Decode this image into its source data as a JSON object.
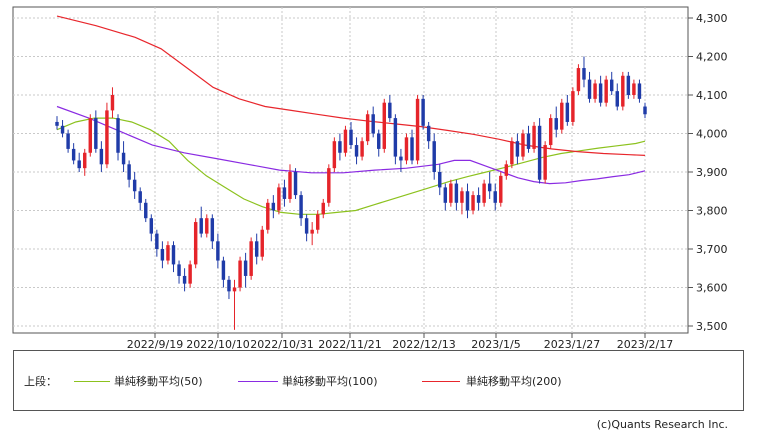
{
  "chart_data": {
    "type": "candlestick",
    "y_ticks": [
      "4,300",
      "4,200",
      "4,100",
      "4,000",
      "3,900",
      "3,800",
      "3,700",
      "3,600",
      "3,500"
    ],
    "ylim": [
      3480,
      4320
    ],
    "x_tick_labels": [
      "2022/9/19",
      "2022/10/10",
      "2022/10/31",
      "2022/11/21",
      "2022/12/13",
      "2023/1/5",
      "2023/1/27",
      "2023/2/17"
    ],
    "up_color": "#e5242a",
    "down_color": "#1f3ba8",
    "candles": [
      [
        4030,
        4045,
        4010,
        4020
      ],
      [
        4020,
        4035,
        3990,
        4000
      ],
      [
        4000,
        4010,
        3950,
        3960
      ],
      [
        3960,
        3975,
        3920,
        3930
      ],
      [
        3930,
        3950,
        3900,
        3910
      ],
      [
        3910,
        3960,
        3890,
        3950
      ],
      [
        3950,
        4050,
        3940,
        4040
      ],
      [
        4040,
        4060,
        3950,
        3960
      ],
      [
        3960,
        3980,
        3900,
        3920
      ],
      [
        3920,
        4080,
        3910,
        4060
      ],
      [
        4060,
        4120,
        4040,
        4100
      ],
      [
        4040,
        4050,
        3930,
        3950
      ],
      [
        3950,
        3980,
        3900,
        3920
      ],
      [
        3920,
        3930,
        3860,
        3880
      ],
      [
        3880,
        3900,
        3830,
        3850
      ],
      [
        3850,
        3860,
        3800,
        3820
      ],
      [
        3820,
        3830,
        3770,
        3780
      ],
      [
        3780,
        3790,
        3720,
        3740
      ],
      [
        3740,
        3750,
        3680,
        3700
      ],
      [
        3700,
        3720,
        3650,
        3670
      ],
      [
        3670,
        3720,
        3660,
        3710
      ],
      [
        3710,
        3720,
        3640,
        3660
      ],
      [
        3660,
        3670,
        3610,
        3630
      ],
      [
        3630,
        3650,
        3590,
        3610
      ],
      [
        3610,
        3670,
        3600,
        3660
      ],
      [
        3660,
        3780,
        3650,
        3770
      ],
      [
        3780,
        3810,
        3730,
        3740
      ],
      [
        3740,
        3790,
        3730,
        3780
      ],
      [
        3780,
        3790,
        3700,
        3720
      ],
      [
        3720,
        3740,
        3650,
        3670
      ],
      [
        3670,
        3680,
        3600,
        3620
      ],
      [
        3620,
        3630,
        3570,
        3590
      ],
      [
        3590,
        3620,
        3490,
        3600
      ],
      [
        3600,
        3680,
        3590,
        3670
      ],
      [
        3670,
        3690,
        3600,
        3630
      ],
      [
        3630,
        3730,
        3620,
        3720
      ],
      [
        3720,
        3740,
        3660,
        3680
      ],
      [
        3680,
        3760,
        3670,
        3750
      ],
      [
        3750,
        3830,
        3740,
        3820
      ],
      [
        3820,
        3840,
        3780,
        3800
      ],
      [
        3800,
        3870,
        3790,
        3860
      ],
      [
        3860,
        3880,
        3810,
        3830
      ],
      [
        3830,
        3920,
        3820,
        3900
      ],
      [
        3900,
        3910,
        3830,
        3840
      ],
      [
        3840,
        3850,
        3760,
        3780
      ],
      [
        3780,
        3790,
        3720,
        3740
      ],
      [
        3740,
        3770,
        3710,
        3750
      ],
      [
        3750,
        3800,
        3740,
        3790
      ],
      [
        3790,
        3830,
        3780,
        3820
      ],
      [
        3820,
        3920,
        3810,
        3910
      ],
      [
        3910,
        3990,
        3900,
        3980
      ],
      [
        3980,
        4000,
        3930,
        3950
      ],
      [
        3950,
        4020,
        3940,
        4010
      ],
      [
        4010,
        4030,
        3960,
        3970
      ],
      [
        3970,
        3990,
        3920,
        3940
      ],
      [
        3940,
        3990,
        3930,
        3980
      ],
      [
        3980,
        4060,
        3970,
        4050
      ],
      [
        4050,
        4070,
        3990,
        4000
      ],
      [
        4000,
        4010,
        3940,
        3960
      ],
      [
        3960,
        4090,
        3950,
        4080
      ],
      [
        4080,
        4100,
        4030,
        4040
      ],
      [
        4040,
        4050,
        3920,
        3940
      ],
      [
        3940,
        3960,
        3900,
        3930
      ],
      [
        3930,
        4000,
        3920,
        3990
      ],
      [
        3990,
        4010,
        3920,
        3930
      ],
      [
        3930,
        4100,
        3920,
        4090
      ],
      [
        4090,
        4100,
        4010,
        4020
      ],
      [
        4020,
        4030,
        3960,
        3980
      ],
      [
        3980,
        4000,
        3880,
        3900
      ],
      [
        3900,
        3920,
        3840,
        3860
      ],
      [
        3860,
        3870,
        3800,
        3820
      ],
      [
        3820,
        3880,
        3810,
        3870
      ],
      [
        3870,
        3880,
        3800,
        3820
      ],
      [
        3820,
        3860,
        3790,
        3850
      ],
      [
        3850,
        3870,
        3780,
        3800
      ],
      [
        3800,
        3850,
        3790,
        3840
      ],
      [
        3840,
        3860,
        3800,
        3820
      ],
      [
        3820,
        3880,
        3810,
        3870
      ],
      [
        3870,
        3900,
        3830,
        3850
      ],
      [
        3850,
        3870,
        3800,
        3820
      ],
      [
        3820,
        3900,
        3810,
        3890
      ],
      [
        3890,
        3930,
        3880,
        3920
      ],
      [
        3920,
        3990,
        3910,
        3980
      ],
      [
        3980,
        4000,
        3920,
        3940
      ],
      [
        3940,
        4010,
        3930,
        4000
      ],
      [
        4000,
        4020,
        3950,
        3960
      ],
      [
        3960,
        4030,
        3950,
        4020
      ],
      [
        4020,
        4040,
        3870,
        3880
      ],
      [
        3880,
        3980,
        3870,
        3970
      ],
      [
        3970,
        4050,
        3960,
        4040
      ],
      [
        4040,
        4070,
        3990,
        4010
      ],
      [
        4010,
        4090,
        4000,
        4080
      ],
      [
        4080,
        4100,
        4020,
        4030
      ],
      [
        4030,
        4120,
        4020,
        4110
      ],
      [
        4110,
        4180,
        4100,
        4170
      ],
      [
        4170,
        4200,
        4120,
        4140
      ],
      [
        4140,
        4160,
        4080,
        4090
      ],
      [
        4090,
        4140,
        4080,
        4130
      ],
      [
        4130,
        4150,
        4070,
        4080
      ],
      [
        4080,
        4150,
        4070,
        4140
      ],
      [
        4140,
        4160,
        4100,
        4110
      ],
      [
        4110,
        4130,
        4060,
        4070
      ],
      [
        4070,
        4160,
        4060,
        4150
      ],
      [
        4150,
        4160,
        4090,
        4100
      ],
      [
        4100,
        4140,
        4090,
        4130
      ],
      [
        4130,
        4140,
        4080,
        4090
      ],
      [
        4070,
        4080,
        4040,
        4050
      ]
    ],
    "series": [
      {
        "name": "単純移動平均(50)",
        "color": "#8cc21e",
        "values": [
          [
            0,
            4010
          ],
          [
            8,
            4030
          ],
          [
            16,
            4040
          ],
          [
            24,
            4040
          ],
          [
            32,
            4030
          ],
          [
            40,
            4010
          ],
          [
            48,
            3980
          ],
          [
            56,
            3930
          ],
          [
            64,
            3890
          ],
          [
            72,
            3860
          ],
          [
            80,
            3830
          ],
          [
            88,
            3810
          ],
          [
            96,
            3795
          ],
          [
            104,
            3790
          ],
          [
            112,
            3790
          ],
          [
            120,
            3795
          ],
          [
            128,
            3800
          ],
          [
            136,
            3815
          ],
          [
            144,
            3830
          ],
          [
            152,
            3845
          ],
          [
            160,
            3860
          ],
          [
            168,
            3875
          ],
          [
            176,
            3888
          ],
          [
            184,
            3900
          ],
          [
            192,
            3912
          ],
          [
            200,
            3925
          ],
          [
            208,
            3938
          ],
          [
            216,
            3948
          ],
          [
            224,
            3955
          ],
          [
            232,
            3962
          ],
          [
            240,
            3968
          ],
          [
            248,
            3974
          ],
          [
            252,
            3980
          ]
        ]
      },
      {
        "name": "単純移動平均(100)",
        "color": "#8a2be2",
        "values": [
          [
            0,
            4070
          ],
          [
            16,
            4040
          ],
          [
            32,
            4005
          ],
          [
            48,
            3970
          ],
          [
            64,
            3950
          ],
          [
            80,
            3935
          ],
          [
            96,
            3920
          ],
          [
            112,
            3905
          ],
          [
            128,
            3898
          ],
          [
            144,
            3898
          ],
          [
            160,
            3905
          ],
          [
            176,
            3910
          ],
          [
            192,
            3920
          ],
          [
            200,
            3930
          ],
          [
            208,
            3930
          ],
          [
            216,
            3915
          ],
          [
            224,
            3900
          ],
          [
            232,
            3885
          ],
          [
            240,
            3875
          ],
          [
            248,
            3870
          ],
          [
            256,
            3872
          ],
          [
            264,
            3878
          ],
          [
            272,
            3882
          ],
          [
            280,
            3888
          ],
          [
            288,
            3893
          ],
          [
            296,
            3903
          ]
        ]
      },
      {
        "name": "単純移動平均(200)",
        "color": "#e8262c",
        "values": [
          [
            0,
            4305
          ],
          [
            30,
            4280
          ],
          [
            60,
            4250
          ],
          [
            80,
            4220
          ],
          [
            100,
            4170
          ],
          [
            120,
            4120
          ],
          [
            140,
            4090
          ],
          [
            160,
            4070
          ],
          [
            180,
            4060
          ],
          [
            200,
            4050
          ],
          [
            220,
            4040
          ],
          [
            240,
            4032
          ],
          [
            260,
            4025
          ],
          [
            280,
            4018
          ],
          [
            300,
            4008
          ],
          [
            320,
            3998
          ],
          [
            340,
            3985
          ],
          [
            360,
            3970
          ],
          [
            380,
            3960
          ],
          [
            400,
            3953
          ],
          [
            420,
            3948
          ],
          [
            440,
            3945
          ],
          [
            452,
            3943
          ]
        ]
      }
    ]
  },
  "legend": {
    "prefix": "上段：",
    "items": [
      {
        "label": "単純移動平均(50)",
        "color": "#8cc21e"
      },
      {
        "label": "単純移動平均(100)",
        "color": "#8a2be2"
      },
      {
        "label": "単純移動平均(200)",
        "color": "#e8262c"
      }
    ]
  },
  "credit": "(c)Quants Research Inc."
}
